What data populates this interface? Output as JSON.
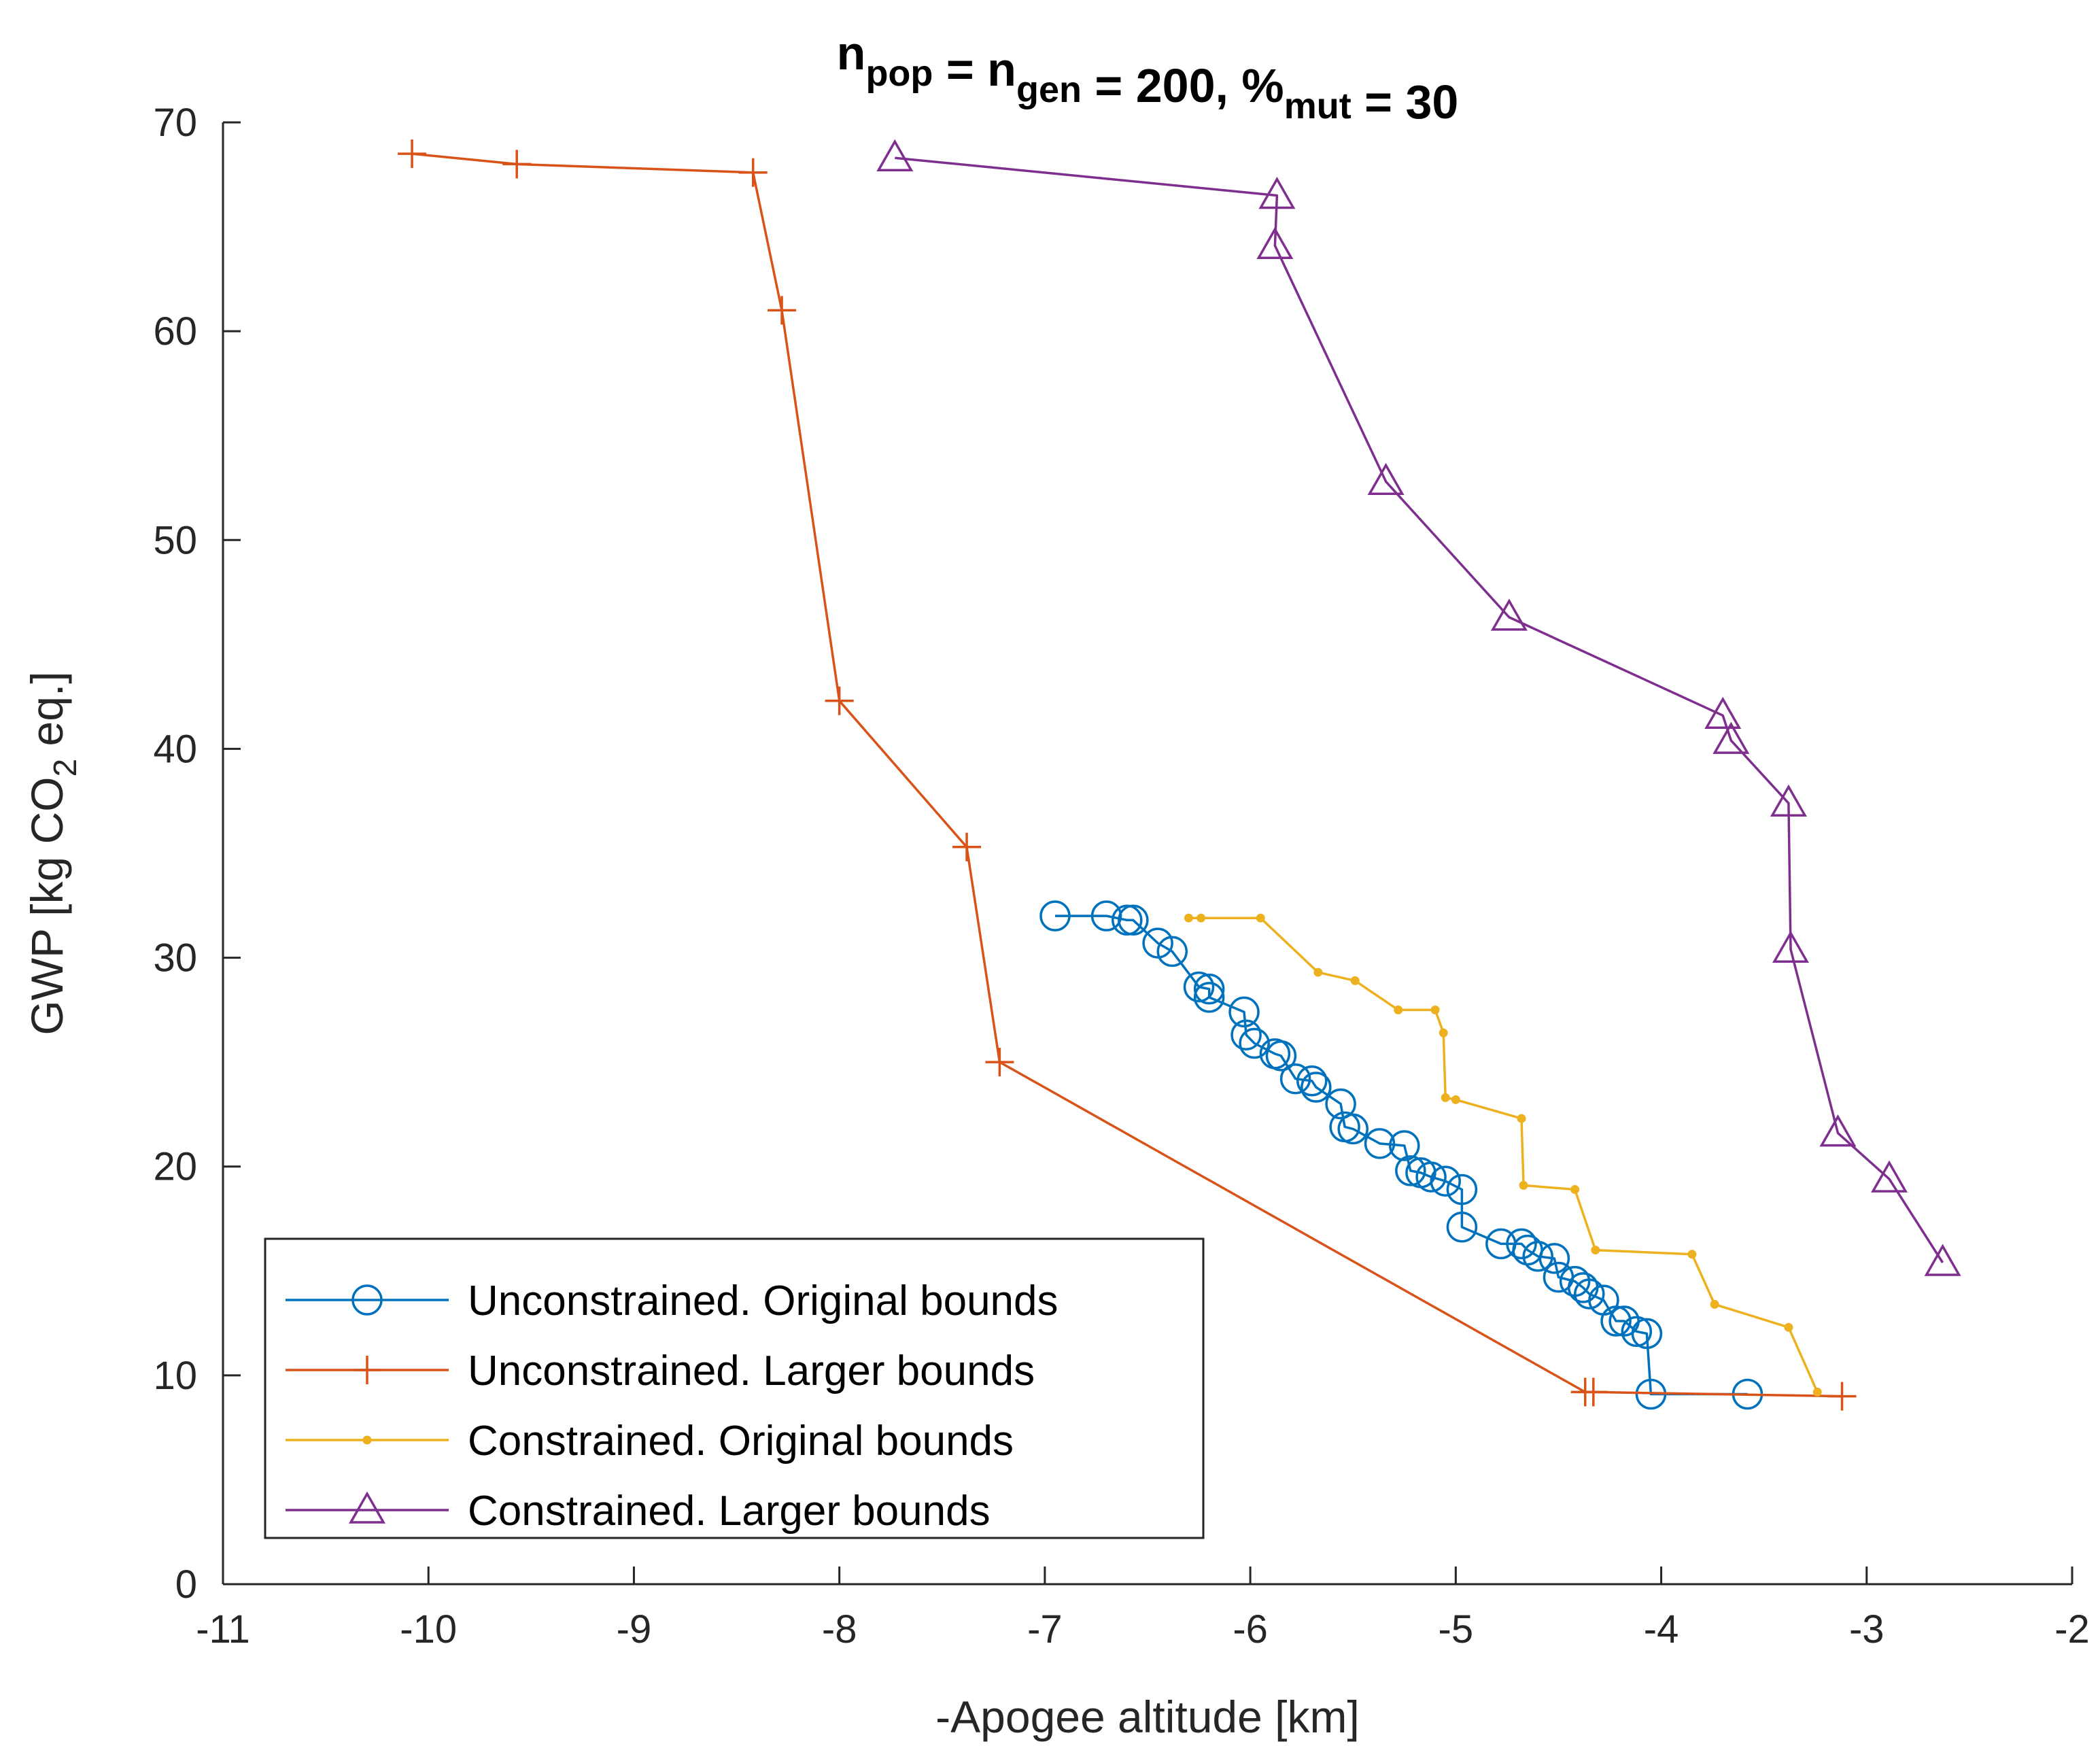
{
  "chart_data": {
    "type": "line",
    "title": {
      "parts": [
        {
          "text": "n",
          "sub": "pop"
        },
        {
          "text": " = n",
          "sub": "gen"
        },
        {
          "text": " = 200, %",
          "sub": "mut"
        },
        {
          "text": " = 30",
          "sub": ""
        }
      ]
    },
    "xlabel": "-Apogee altitude [km]",
    "ylabel": {
      "pre": "GWP [kg CO",
      "sub": "2",
      "post": " eq.]"
    },
    "xlim": [
      -11,
      -2
    ],
    "ylim": [
      0,
      70
    ],
    "xticks": [
      -11,
      -10,
      -9,
      -8,
      -7,
      -6,
      -5,
      -4,
      -3,
      -2
    ],
    "yticks": [
      0,
      10,
      20,
      30,
      40,
      50,
      60,
      70
    ],
    "xtick_labels": [
      "-11",
      "-10",
      "-9",
      "-8",
      "-7",
      "-6",
      "-5",
      "-4",
      "-3",
      "-2"
    ],
    "ytick_labels": [
      "0",
      "10",
      "20",
      "30",
      "40",
      "50",
      "60",
      "70"
    ],
    "grid": false,
    "legend_position": "bottom-left",
    "series": [
      {
        "name": "Unconstrained. Original bounds",
        "color": "#0072BD",
        "marker": "circle",
        "x": [
          -6.95,
          -6.7,
          -6.6,
          -6.57,
          -6.45,
          -6.38,
          -6.25,
          -6.2,
          -6.2,
          -6.03,
          -6.02,
          -5.98,
          -5.88,
          -5.85,
          -5.78,
          -5.7,
          -5.68,
          -5.56,
          -5.54,
          -5.5,
          -5.37,
          -5.25,
          -5.22,
          -5.17,
          -5.12,
          -5.05,
          -4.97,
          -4.97,
          -4.78,
          -4.68,
          -4.65,
          -4.6,
          -4.52,
          -4.5,
          -4.42,
          -4.38,
          -4.35,
          -4.28,
          -4.22,
          -4.18,
          -4.12,
          -4.07,
          -4.05,
          -3.58
        ],
        "y": [
          32.0,
          32.0,
          31.8,
          31.8,
          30.7,
          30.3,
          28.6,
          28.5,
          28.1,
          27.4,
          26.3,
          25.9,
          25.4,
          25.3,
          24.2,
          24.1,
          23.8,
          23.0,
          21.9,
          21.8,
          21.1,
          21.0,
          19.8,
          19.7,
          19.5,
          19.3,
          18.9,
          17.1,
          16.3,
          16.3,
          16.0,
          15.7,
          15.6,
          14.7,
          14.5,
          14.2,
          13.9,
          13.6,
          12.6,
          12.6,
          12.1,
          12.0,
          9.1,
          9.1
        ]
      },
      {
        "name": "Unconstrained. Larger bounds",
        "color": "#D95319",
        "marker": "plus",
        "x": [
          -10.08,
          -9.57,
          -8.42,
          -8.28,
          -8.0,
          -7.38,
          -7.22,
          -4.37,
          -4.33,
          -3.12
        ],
        "y": [
          68.5,
          68.0,
          67.6,
          61.0,
          42.3,
          35.3,
          25.0,
          9.2,
          9.2,
          9.0
        ]
      },
      {
        "name": "Constrained. Original bounds",
        "color": "#EDB120",
        "marker": "dot",
        "x": [
          -6.3,
          -6.24,
          -5.95,
          -5.67,
          -5.49,
          -5.28,
          -5.1,
          -5.06,
          -5.05,
          -5.0,
          -4.68,
          -4.67,
          -4.42,
          -4.32,
          -3.85,
          -3.74,
          -3.38,
          -3.24
        ],
        "y": [
          31.9,
          31.9,
          31.9,
          29.3,
          28.9,
          27.5,
          27.5,
          26.4,
          23.3,
          23.2,
          22.3,
          19.1,
          18.9,
          16.0,
          15.8,
          13.4,
          12.3,
          9.2
        ]
      },
      {
        "name": "Constrained. Larger bounds",
        "color": "#7E2F8E",
        "marker": "triangle",
        "x": [
          -7.73,
          -5.87,
          -5.88,
          -5.34,
          -4.74,
          -3.7,
          -3.66,
          -3.38,
          -3.37,
          -3.14,
          -2.89,
          -2.63
        ],
        "y": [
          68.3,
          66.5,
          64.1,
          52.8,
          46.3,
          41.6,
          40.4,
          37.4,
          30.4,
          21.6,
          19.4,
          15.4
        ]
      }
    ]
  }
}
